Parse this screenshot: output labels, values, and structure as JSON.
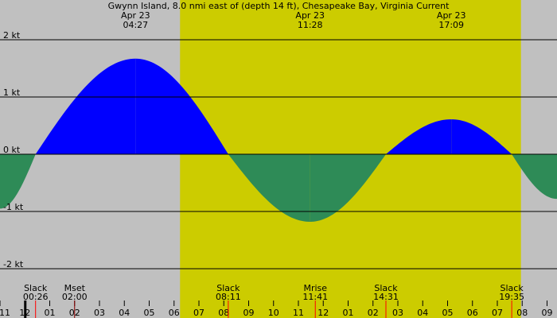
{
  "chart_data": {
    "type": "area",
    "title": "Gwynn Island, 8.0 nmi east of (depth 14 ft), Chesapeake Bay, Virginia Current",
    "xlabel": "",
    "ylabel": "",
    "unit": "kt",
    "x_start_hour": 11,
    "x_end_hour": 33.4,
    "ylim": [
      -2.2,
      2.5
    ],
    "y_ticks": [
      {
        "value": 2,
        "label": "2 kt"
      },
      {
        "value": 1,
        "label": "1 kt"
      },
      {
        "value": 0,
        "label": "0 kt"
      },
      {
        "value": -1,
        "label": "-1 kt"
      },
      {
        "value": -2,
        "label": "-2 kt"
      }
    ],
    "x_tick_labels": [
      "11",
      "12",
      "01",
      "02",
      "03",
      "04",
      "05",
      "06",
      "07",
      "08",
      "09",
      "10",
      "11",
      "12",
      "01",
      "02",
      "03",
      "04",
      "05",
      "06",
      "07",
      "08",
      "09"
    ],
    "daylight": {
      "start_hour": 18.24,
      "end_hour": 31.95
    },
    "current": [
      {
        "x": 11.0,
        "y": -0.95
      },
      {
        "x": 12.43,
        "y": 0.0
      },
      {
        "x": 16.45,
        "y": 1.67
      },
      {
        "x": 20.18,
        "y": 0.0
      },
      {
        "x": 23.47,
        "y": -1.18
      },
      {
        "x": 26.52,
        "y": 0.0
      },
      {
        "x": 29.15,
        "y": 0.61
      },
      {
        "x": 31.58,
        "y": 0.0
      },
      {
        "x": 33.4,
        "y": -0.78
      }
    ],
    "peaks": [
      {
        "x": 16.45,
        "date": "Apr 23",
        "time": "04:27"
      },
      {
        "x": 23.47,
        "date": "Apr 23",
        "time": "11:28"
      },
      {
        "x": 29.15,
        "date": "Apr 23",
        "time": "17:09"
      }
    ],
    "events": [
      {
        "x": 12.43,
        "label": "Slack",
        "time": "00:26",
        "marker": "#ff0000"
      },
      {
        "x": 14.0,
        "label": "Mset",
        "time": "02:00",
        "marker": "#8b0000"
      },
      {
        "x": 20.18,
        "label": "Slack",
        "time": "08:11",
        "marker": "#ff0000"
      },
      {
        "x": 23.68,
        "label": "Mrise",
        "time": "11:41",
        "marker": "#ff0000"
      },
      {
        "x": 26.52,
        "label": "Slack",
        "time": "14:31",
        "marker": "#ff0000"
      },
      {
        "x": 31.58,
        "label": "Slack",
        "time": "19:35",
        "marker": "#ff0000"
      }
    ],
    "colors": {
      "background": "#c0c0c0",
      "daylight": "#cccc00",
      "flood": "#0000ff",
      "ebb": "#2e8b57",
      "axis": "#000000"
    }
  }
}
